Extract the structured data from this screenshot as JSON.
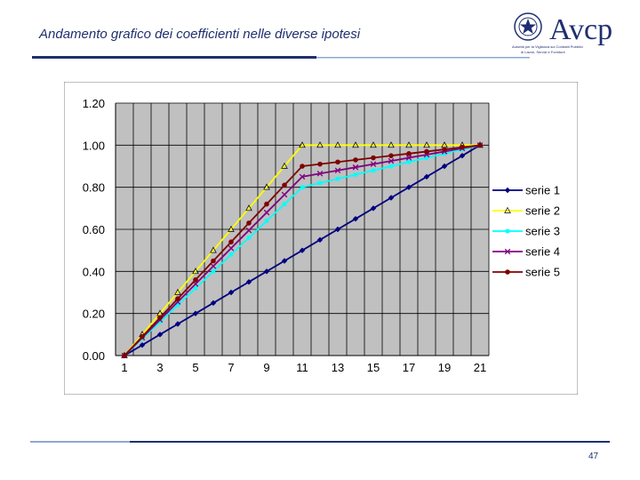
{
  "slide": {
    "title": "Andamento grafico dei coefficienti nelle diverse ipotesi",
    "page_number": "47"
  },
  "logo": {
    "name": "Avcp",
    "subtitle_lines": [
      "Autorità per la Vigilanza sui Contratti Pubblici",
      "di Lavori, Servizi e Forniture"
    ]
  },
  "colors": {
    "title": "#1f2f6e",
    "rule_dark": "#1f2f6e",
    "rule_light": "#8fa8d0",
    "plot_bg": "#c0c0c0",
    "chart_border": "#808080"
  },
  "chart_data": {
    "type": "line",
    "x": [
      1,
      2,
      3,
      4,
      5,
      6,
      7,
      8,
      9,
      10,
      11,
      12,
      13,
      14,
      15,
      16,
      17,
      18,
      19,
      20,
      21
    ],
    "xticks": [
      1,
      3,
      5,
      7,
      9,
      11,
      13,
      15,
      17,
      19,
      21
    ],
    "xtick_labels": [
      "1",
      "3",
      "5",
      "7",
      "9",
      "11",
      "13",
      "15",
      "17",
      "19",
      "21"
    ],
    "ylim": [
      0,
      1.2
    ],
    "yticks": [
      0,
      0.2,
      0.4,
      0.6,
      0.8,
      1.0,
      1.2
    ],
    "ytick_labels": [
      "0.00",
      "0.20",
      "0.40",
      "0.60",
      "0.80",
      "1.00",
      "1.20"
    ],
    "grid": true,
    "legend_position": "right",
    "series": [
      {
        "name": "serie 1",
        "color": "#000080",
        "marker": "diamond",
        "values": [
          0,
          0.05,
          0.1,
          0.15,
          0.2,
          0.25,
          0.3,
          0.35,
          0.4,
          0.45,
          0.5,
          0.55,
          0.6,
          0.65,
          0.7,
          0.75,
          0.8,
          0.85,
          0.9,
          0.95,
          1.0
        ]
      },
      {
        "name": "serie 2",
        "color": "#ffff00",
        "marker": "triangle",
        "values": [
          0,
          0.1,
          0.2,
          0.3,
          0.4,
          0.5,
          0.6,
          0.7,
          0.8,
          0.9,
          1.0,
          1.0,
          1.0,
          1.0,
          1.0,
          1.0,
          1.0,
          1.0,
          1.0,
          1.0,
          1.0
        ]
      },
      {
        "name": "serie 3",
        "color": "#00ffff",
        "marker": "square",
        "values": [
          0,
          0.08,
          0.16,
          0.24,
          0.32,
          0.4,
          0.48,
          0.56,
          0.64,
          0.72,
          0.8,
          0.82,
          0.84,
          0.86,
          0.88,
          0.9,
          0.92,
          0.94,
          0.96,
          0.98,
          1.0
        ]
      },
      {
        "name": "serie 4",
        "color": "#800080",
        "marker": "x",
        "values": [
          0,
          0.085,
          0.17,
          0.255,
          0.34,
          0.425,
          0.51,
          0.595,
          0.68,
          0.765,
          0.85,
          0.865,
          0.88,
          0.895,
          0.91,
          0.925,
          0.94,
          0.955,
          0.97,
          0.985,
          1.0
        ]
      },
      {
        "name": "serie 5",
        "color": "#800000",
        "marker": "circle",
        "values": [
          0,
          0.09,
          0.18,
          0.27,
          0.36,
          0.45,
          0.54,
          0.63,
          0.72,
          0.81,
          0.9,
          0.91,
          0.92,
          0.93,
          0.94,
          0.95,
          0.96,
          0.97,
          0.98,
          0.99,
          1.0
        ]
      }
    ]
  }
}
